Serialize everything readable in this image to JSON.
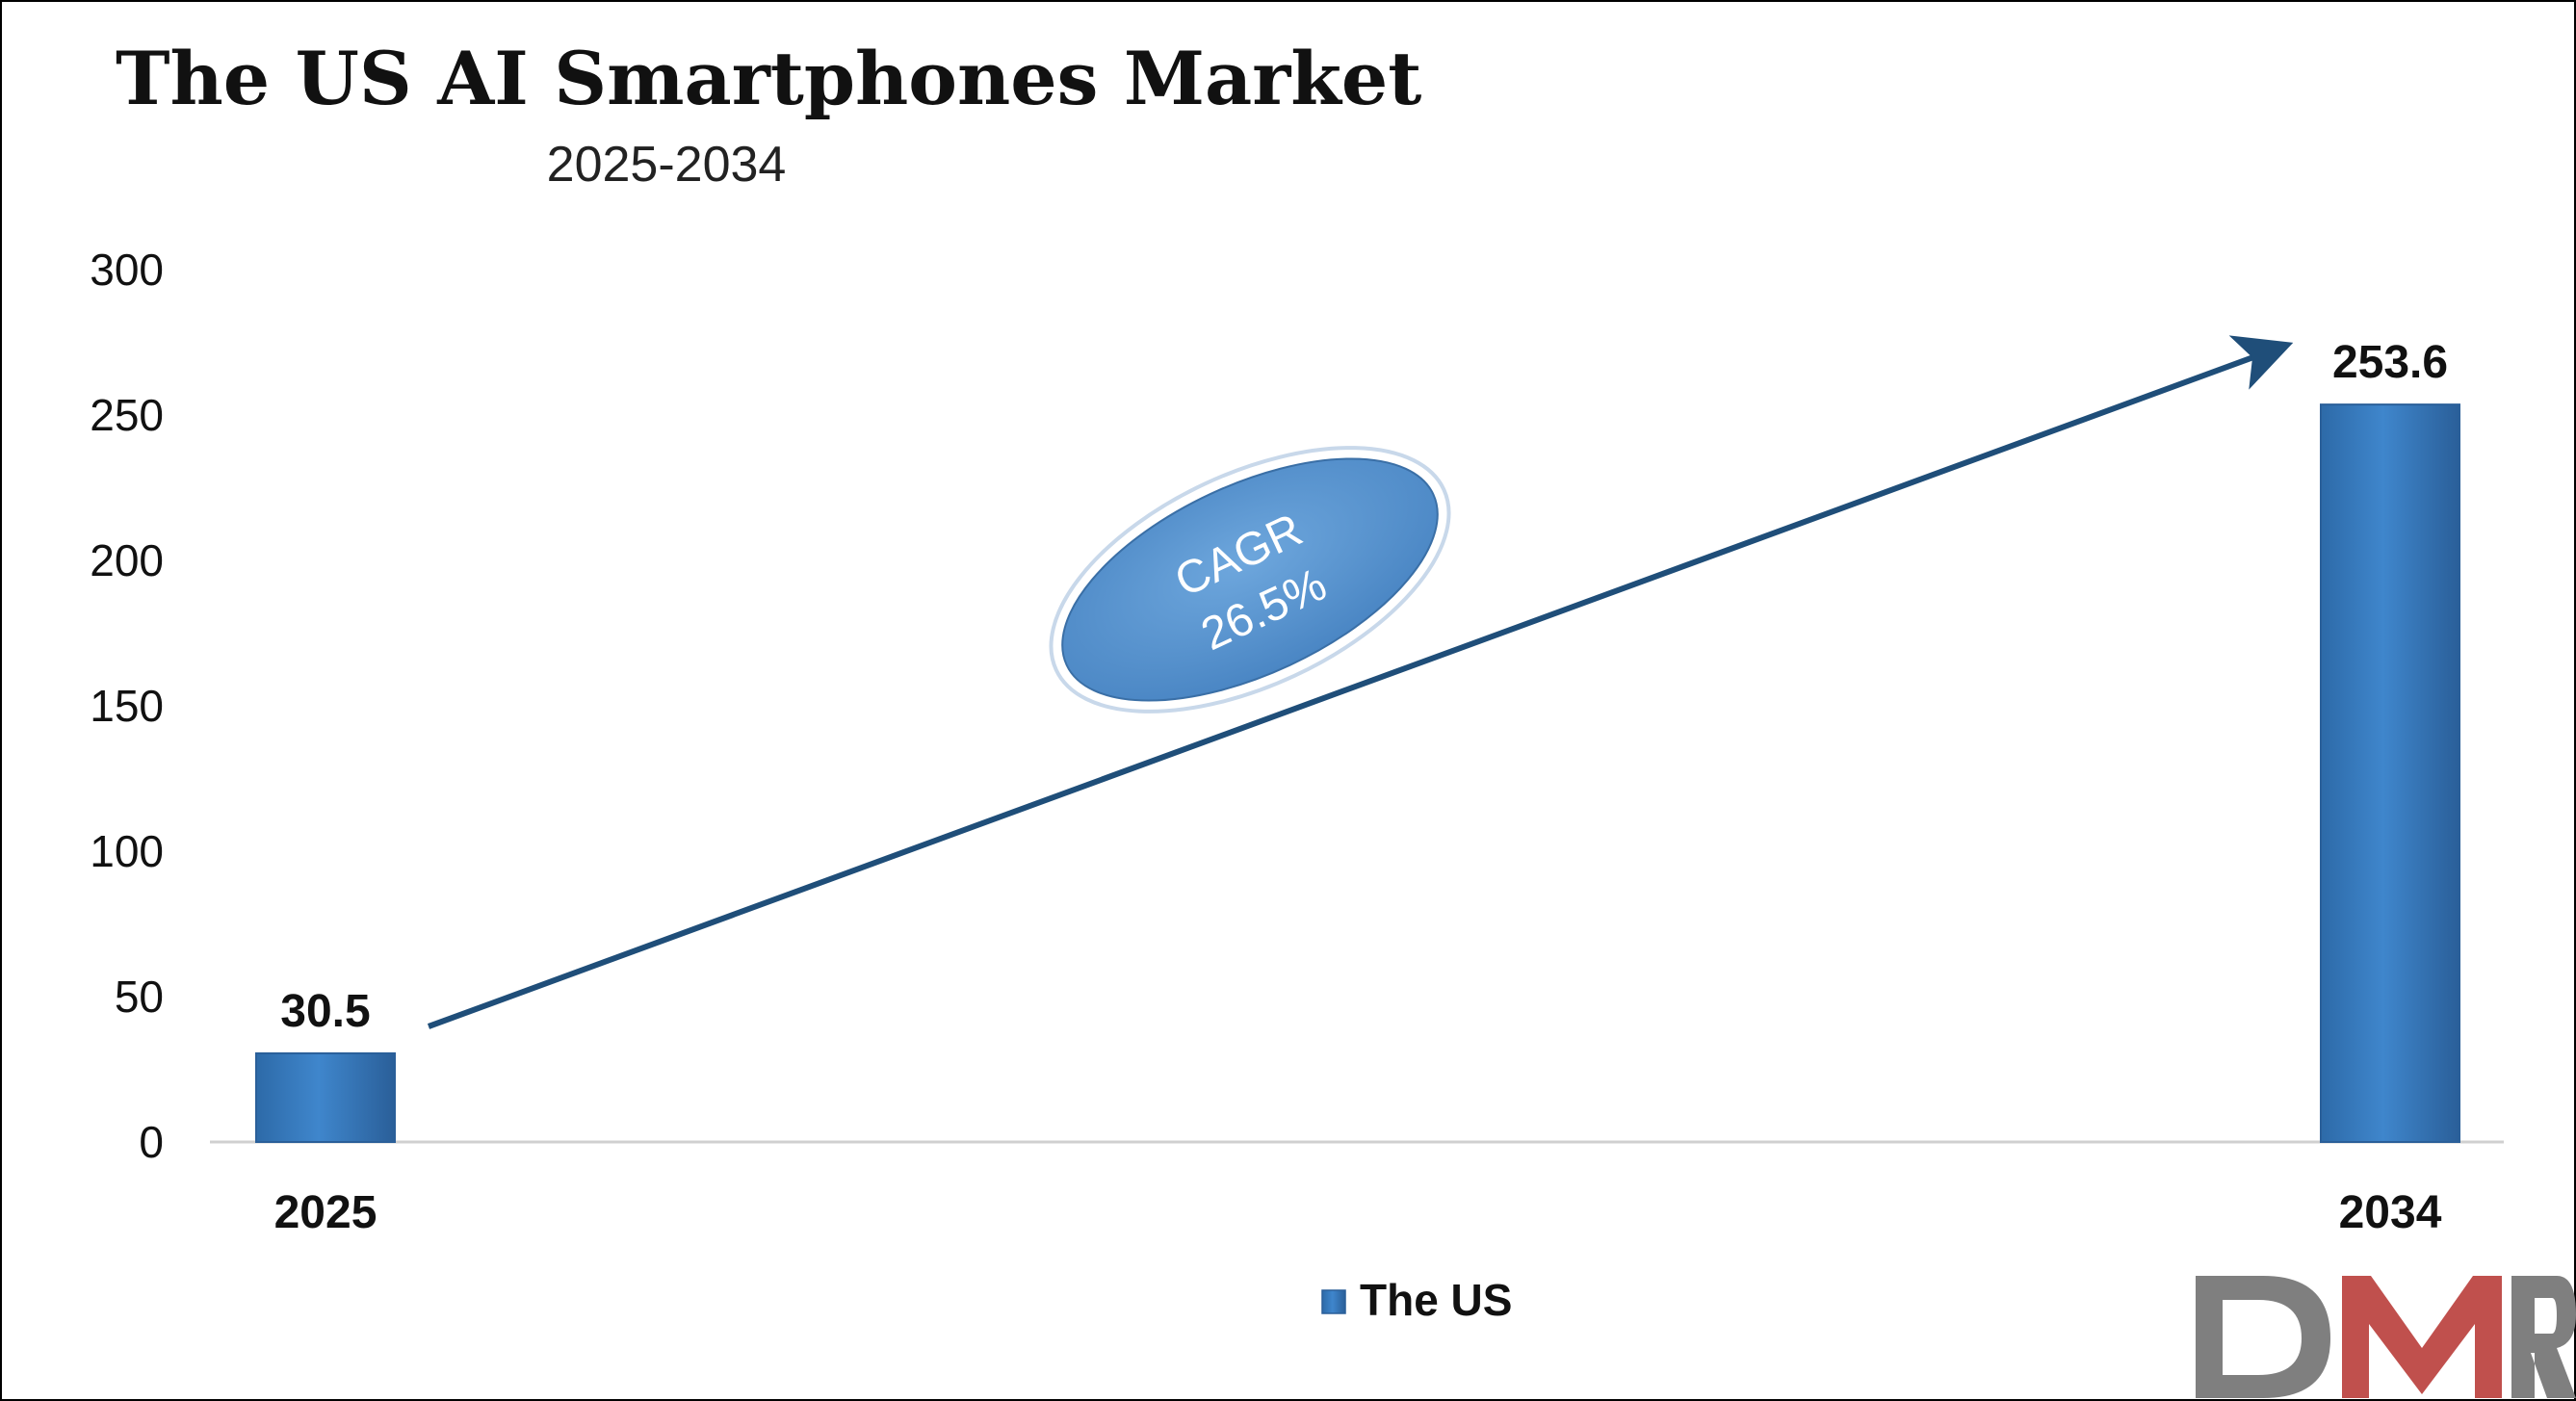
{
  "chart_data": {
    "type": "bar",
    "title": "The US AI Smartphones Market",
    "subtitle": "2025-2034",
    "categories": [
      "2025",
      "2034"
    ],
    "series": [
      {
        "name": "The US",
        "values": [
          30.5,
          253.6
        ]
      }
    ],
    "data_labels": [
      "30.5",
      "253.6"
    ],
    "ylim": [
      0,
      300
    ],
    "yticks": [
      0,
      50,
      100,
      150,
      200,
      250,
      300
    ],
    "grid": false,
    "legend_position": "bottom",
    "annotation": {
      "line1": "CAGR",
      "line2": "26.5%"
    }
  },
  "colors": {
    "bar": "#3a7cc1",
    "bar_dark": "#2a5f99",
    "arrow": "#1f4e79",
    "ellipse": "#5b9bd5",
    "logo_gray": "#7f7f7f",
    "logo_red": "#c0504d"
  },
  "logo": {
    "text": "DMR"
  }
}
